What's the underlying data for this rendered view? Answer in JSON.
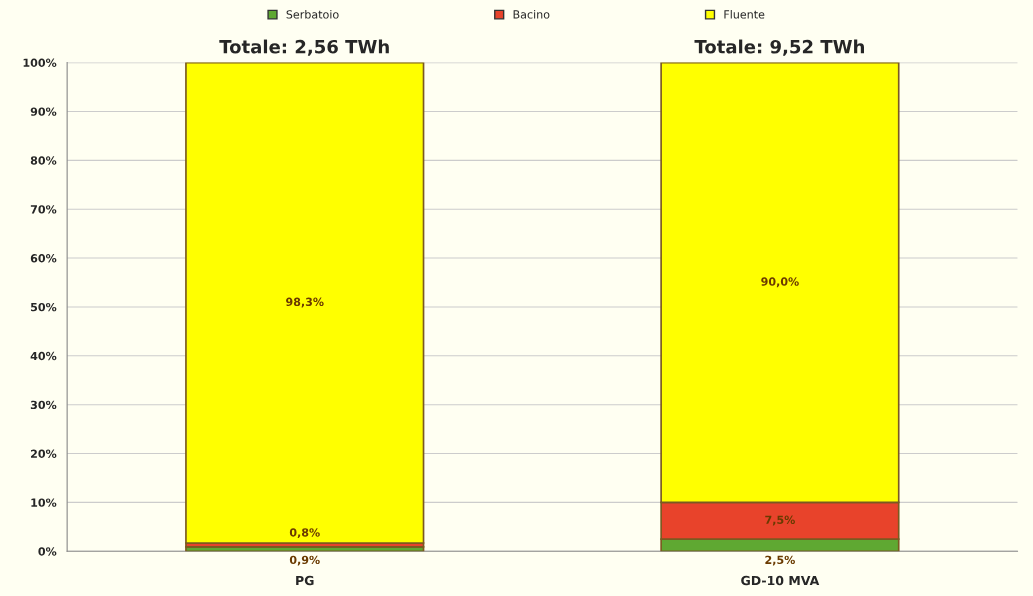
{
  "chart_data": {
    "type": "bar",
    "stacked": true,
    "categories": [
      "PG",
      "GD-10 MVA"
    ],
    "series": [
      {
        "name": "Serbatoio",
        "color": "#5fa832",
        "values": [
          0.9,
          2.5
        ],
        "value_labels": [
          "0,9%",
          "2,5%"
        ]
      },
      {
        "name": "Bacino",
        "color": "#e8432b",
        "values": [
          0.8,
          7.5
        ],
        "value_labels": [
          "0,8%",
          "7,5%"
        ]
      },
      {
        "name": "Fluente",
        "color": "#ffff00",
        "values": [
          98.3,
          90.0
        ],
        "value_labels": [
          "98,3%",
          "90,0%"
        ]
      }
    ],
    "ylim": [
      0,
      100
    ],
    "yticks": [
      {
        "value": 0,
        "label": "0%"
      },
      {
        "value": 10,
        "label": "10%"
      },
      {
        "value": 20,
        "label": "20%"
      },
      {
        "value": 30,
        "label": "30%"
      },
      {
        "value": 40,
        "label": "40%"
      },
      {
        "value": 50,
        "label": "50%"
      },
      {
        "value": 60,
        "label": "60%"
      },
      {
        "value": 70,
        "label": "70%"
      },
      {
        "value": 80,
        "label": "80%"
      },
      {
        "value": 90,
        "label": "90%"
      },
      {
        "value": 100,
        "label": "100%"
      }
    ],
    "annotations": [
      {
        "text": "Totale: 2,56 TWh",
        "x": "PG",
        "y": 100
      },
      {
        "text": "Totale: 9,52 TWh",
        "x": "GD-10 MVA",
        "y": 100
      }
    ],
    "grid": "y",
    "legend": "top"
  }
}
